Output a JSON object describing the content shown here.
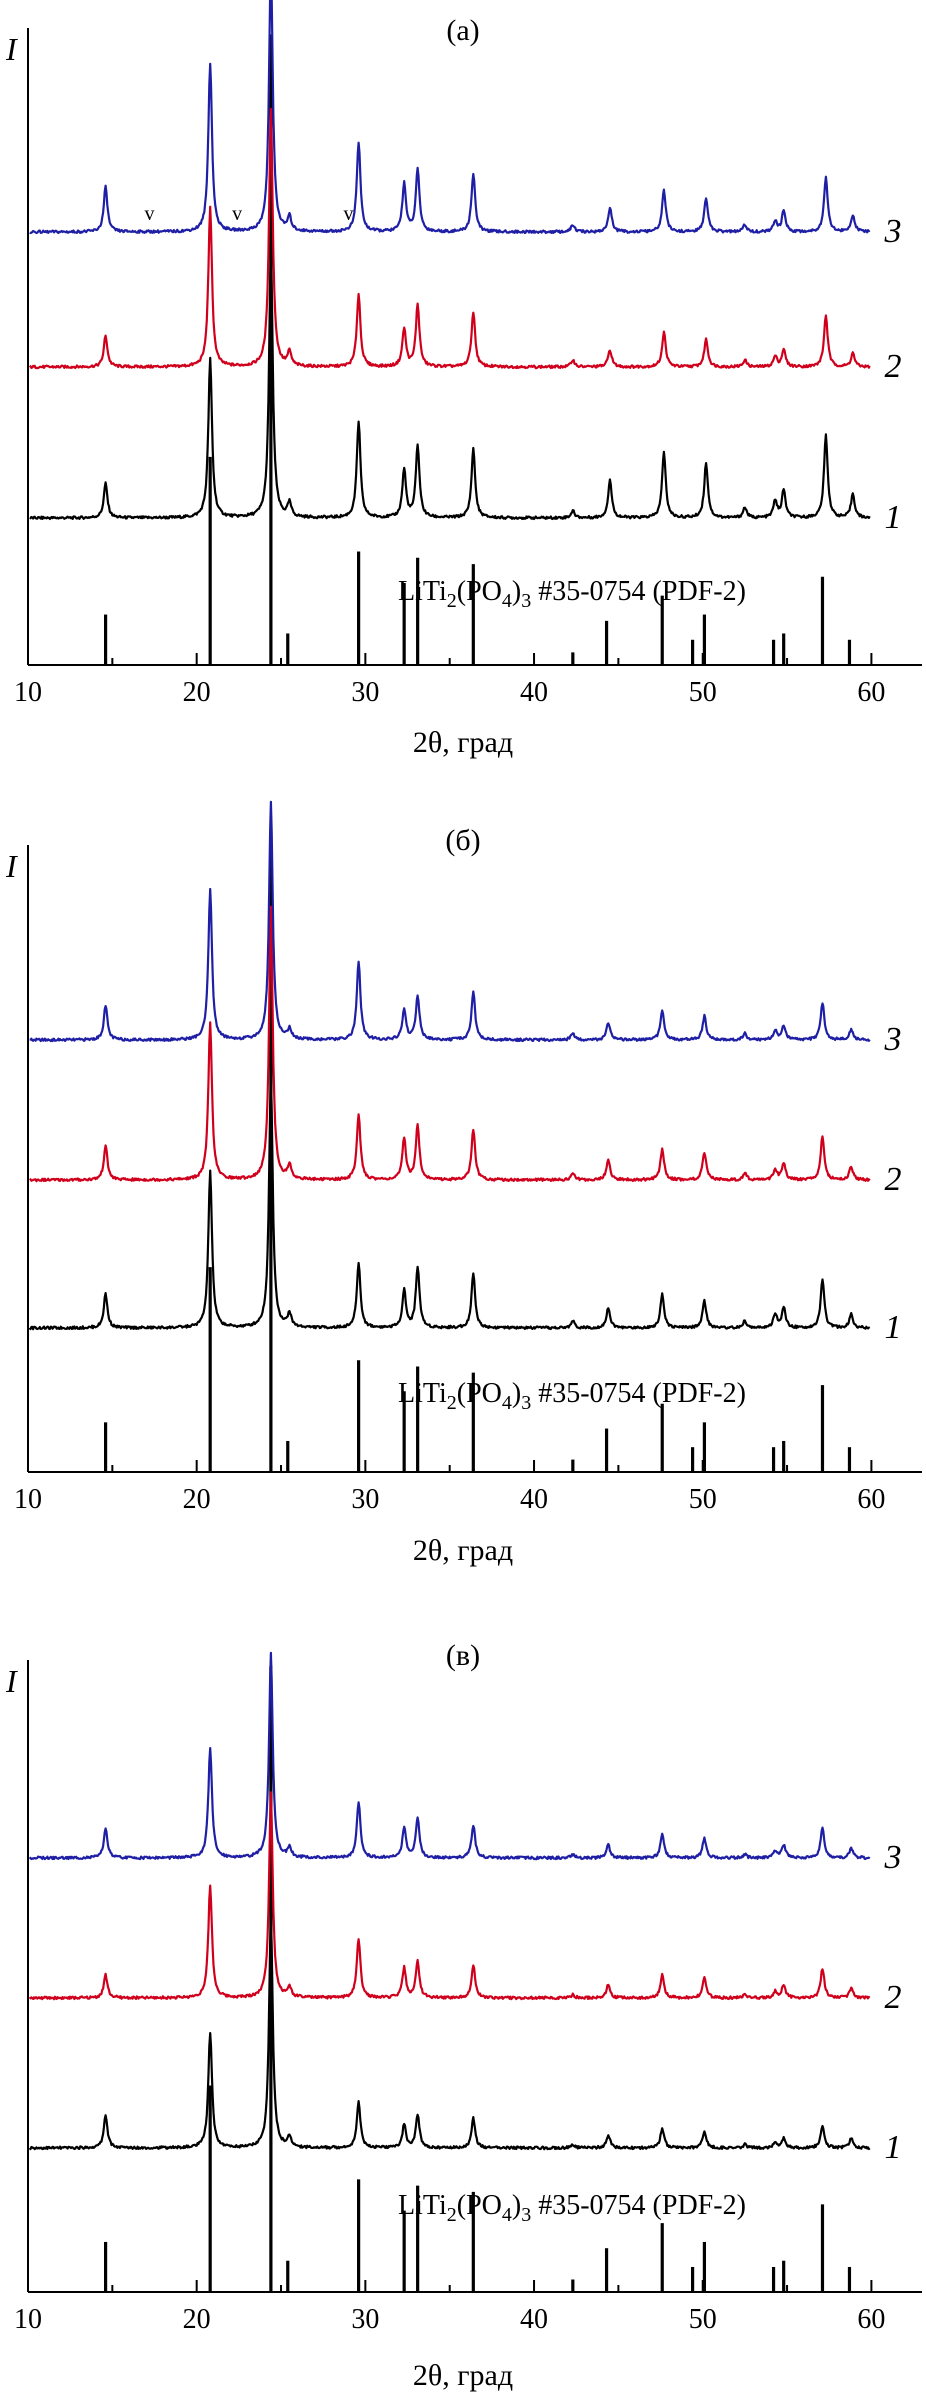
{
  "colors": {
    "curve1": "#000000",
    "curve2": "#d0001c",
    "curve3": "#1f1fa6",
    "axes": "#000000"
  },
  "chart_data": [
    {
      "type": "line",
      "panel_label": "(а)",
      "ylabel": "I",
      "xlabel": "2θ, град",
      "xlim": [
        10,
        63
      ],
      "x_ticks": [
        10,
        20,
        30,
        40,
        50,
        60
      ],
      "reference": {
        "label_parts": [
          "LiTi",
          "2",
          "(PO",
          "4",
          ")",
          "3",
          " #35-0754 (PDF-2)"
        ],
        "peaks": [
          {
            "x": 14.6,
            "h": 0.08
          },
          {
            "x": 20.8,
            "h": 0.33
          },
          {
            "x": 24.4,
            "h": 1.0
          },
          {
            "x": 25.4,
            "h": 0.05
          },
          {
            "x": 29.6,
            "h": 0.18
          },
          {
            "x": 32.3,
            "h": 0.13
          },
          {
            "x": 33.1,
            "h": 0.17
          },
          {
            "x": 36.4,
            "h": 0.16
          },
          {
            "x": 42.3,
            "h": 0.02
          },
          {
            "x": 44.3,
            "h": 0.07
          },
          {
            "x": 47.6,
            "h": 0.11
          },
          {
            "x": 49.4,
            "h": 0.04
          },
          {
            "x": 50.1,
            "h": 0.08
          },
          {
            "x": 54.2,
            "h": 0.04
          },
          {
            "x": 54.8,
            "h": 0.05
          },
          {
            "x": 57.1,
            "h": 0.14
          },
          {
            "x": 58.7,
            "h": 0.04
          }
        ]
      },
      "series": [
        {
          "label": "1",
          "peaks": [
            {
              "x": 14.6,
              "h": 0.1
            },
            {
              "x": 20.8,
              "h": 0.46
            },
            {
              "x": 24.4,
              "h": 0.78
            },
            {
              "x": 25.5,
              "h": 0.04
            },
            {
              "x": 29.6,
              "h": 0.28
            },
            {
              "x": 32.3,
              "h": 0.14
            },
            {
              "x": 33.1,
              "h": 0.21
            },
            {
              "x": 36.4,
              "h": 0.2
            },
            {
              "x": 42.3,
              "h": 0.02
            },
            {
              "x": 44.5,
              "h": 0.11
            },
            {
              "x": 47.7,
              "h": 0.19
            },
            {
              "x": 50.2,
              "h": 0.16
            },
            {
              "x": 52.5,
              "h": 0.03
            },
            {
              "x": 54.3,
              "h": 0.05
            },
            {
              "x": 54.8,
              "h": 0.08
            },
            {
              "x": 57.3,
              "h": 0.24
            },
            {
              "x": 58.9,
              "h": 0.07
            }
          ]
        },
        {
          "label": "2",
          "peaks": [
            {
              "x": 14.6,
              "h": 0.09
            },
            {
              "x": 20.8,
              "h": 0.46
            },
            {
              "x": 24.4,
              "h": 0.75
            },
            {
              "x": 25.5,
              "h": 0.04
            },
            {
              "x": 29.6,
              "h": 0.21
            },
            {
              "x": 32.3,
              "h": 0.11
            },
            {
              "x": 33.1,
              "h": 0.18
            },
            {
              "x": 36.4,
              "h": 0.16
            },
            {
              "x": 42.3,
              "h": 0.02
            },
            {
              "x": 44.5,
              "h": 0.05
            },
            {
              "x": 47.7,
              "h": 0.1
            },
            {
              "x": 50.2,
              "h": 0.08
            },
            {
              "x": 52.5,
              "h": 0.02
            },
            {
              "x": 54.3,
              "h": 0.03
            },
            {
              "x": 54.8,
              "h": 0.05
            },
            {
              "x": 57.3,
              "h": 0.15
            },
            {
              "x": 58.9,
              "h": 0.04
            }
          ]
        },
        {
          "label": "3",
          "peaks": [
            {
              "x": 14.6,
              "h": 0.13
            },
            {
              "x": 20.8,
              "h": 0.49
            },
            {
              "x": 24.4,
              "h": 0.78
            },
            {
              "x": 25.5,
              "h": 0.04
            },
            {
              "x": 29.6,
              "h": 0.26
            },
            {
              "x": 32.3,
              "h": 0.14
            },
            {
              "x": 33.1,
              "h": 0.18
            },
            {
              "x": 36.4,
              "h": 0.17
            },
            {
              "x": 42.3,
              "h": 0.02
            },
            {
              "x": 44.5,
              "h": 0.07
            },
            {
              "x": 47.7,
              "h": 0.12
            },
            {
              "x": 50.2,
              "h": 0.1
            },
            {
              "x": 52.5,
              "h": 0.02
            },
            {
              "x": 54.3,
              "h": 0.03
            },
            {
              "x": 54.8,
              "h": 0.06
            },
            {
              "x": 57.3,
              "h": 0.16
            },
            {
              "x": 58.9,
              "h": 0.05
            }
          ]
        }
      ],
      "markers": [
        {
          "text": "v",
          "x": 17.2
        },
        {
          "text": "v",
          "x": 22.4
        },
        {
          "text": "v",
          "x": 29.0
        }
      ]
    },
    {
      "type": "line",
      "panel_label": "(б)",
      "ylabel": "I",
      "xlabel": "2θ, град",
      "xlim": [
        10,
        63
      ],
      "x_ticks": [
        10,
        20,
        30,
        40,
        50,
        60
      ],
      "reference": {
        "label_parts": [
          "LiTi",
          "2",
          "(PO",
          "4",
          ")",
          "3",
          " #35-0754 (PDF-2)"
        ],
        "peaks": [
          {
            "x": 14.6,
            "h": 0.08
          },
          {
            "x": 20.8,
            "h": 0.33
          },
          {
            "x": 24.4,
            "h": 1.0
          },
          {
            "x": 25.4,
            "h": 0.05
          },
          {
            "x": 29.6,
            "h": 0.18
          },
          {
            "x": 32.3,
            "h": 0.13
          },
          {
            "x": 33.1,
            "h": 0.17
          },
          {
            "x": 36.4,
            "h": 0.16
          },
          {
            "x": 42.3,
            "h": 0.02
          },
          {
            "x": 44.3,
            "h": 0.07
          },
          {
            "x": 47.6,
            "h": 0.11
          },
          {
            "x": 49.4,
            "h": 0.04
          },
          {
            "x": 50.1,
            "h": 0.08
          },
          {
            "x": 54.2,
            "h": 0.04
          },
          {
            "x": 54.8,
            "h": 0.05
          },
          {
            "x": 57.1,
            "h": 0.14
          },
          {
            "x": 58.7,
            "h": 0.04
          }
        ]
      },
      "series": [
        {
          "label": "1",
          "peaks": [
            {
              "x": 14.6,
              "h": 0.1
            },
            {
              "x": 20.8,
              "h": 0.46
            },
            {
              "x": 24.4,
              "h": 0.74
            },
            {
              "x": 25.5,
              "h": 0.04
            },
            {
              "x": 29.6,
              "h": 0.19
            },
            {
              "x": 32.3,
              "h": 0.11
            },
            {
              "x": 33.1,
              "h": 0.18
            },
            {
              "x": 36.4,
              "h": 0.16
            },
            {
              "x": 42.3,
              "h": 0.02
            },
            {
              "x": 44.4,
              "h": 0.06
            },
            {
              "x": 47.6,
              "h": 0.1
            },
            {
              "x": 50.1,
              "h": 0.08
            },
            {
              "x": 52.5,
              "h": 0.02
            },
            {
              "x": 54.3,
              "h": 0.04
            },
            {
              "x": 54.8,
              "h": 0.06
            },
            {
              "x": 57.1,
              "h": 0.14
            },
            {
              "x": 58.8,
              "h": 0.04
            }
          ]
        },
        {
          "label": "2",
          "peaks": [
            {
              "x": 14.6,
              "h": 0.1
            },
            {
              "x": 20.8,
              "h": 0.46
            },
            {
              "x": 24.4,
              "h": 0.8
            },
            {
              "x": 25.5,
              "h": 0.04
            },
            {
              "x": 29.6,
              "h": 0.19
            },
            {
              "x": 32.3,
              "h": 0.12
            },
            {
              "x": 33.1,
              "h": 0.16
            },
            {
              "x": 36.4,
              "h": 0.15
            },
            {
              "x": 42.3,
              "h": 0.02
            },
            {
              "x": 44.4,
              "h": 0.06
            },
            {
              "x": 47.6,
              "h": 0.09
            },
            {
              "x": 50.1,
              "h": 0.08
            },
            {
              "x": 52.5,
              "h": 0.02
            },
            {
              "x": 54.3,
              "h": 0.03
            },
            {
              "x": 54.8,
              "h": 0.05
            },
            {
              "x": 57.1,
              "h": 0.13
            },
            {
              "x": 58.8,
              "h": 0.04
            }
          ]
        },
        {
          "label": "3",
          "peaks": [
            {
              "x": 14.6,
              "h": 0.1
            },
            {
              "x": 20.8,
              "h": 0.44
            },
            {
              "x": 24.4,
              "h": 0.7
            },
            {
              "x": 25.5,
              "h": 0.03
            },
            {
              "x": 29.6,
              "h": 0.23
            },
            {
              "x": 32.3,
              "h": 0.09
            },
            {
              "x": 33.1,
              "h": 0.13
            },
            {
              "x": 36.4,
              "h": 0.14
            },
            {
              "x": 42.3,
              "h": 0.02
            },
            {
              "x": 44.4,
              "h": 0.05
            },
            {
              "x": 47.6,
              "h": 0.09
            },
            {
              "x": 50.1,
              "h": 0.07
            },
            {
              "x": 52.5,
              "h": 0.02
            },
            {
              "x": 54.3,
              "h": 0.03
            },
            {
              "x": 54.8,
              "h": 0.04
            },
            {
              "x": 57.1,
              "h": 0.11
            },
            {
              "x": 58.8,
              "h": 0.03
            }
          ]
        }
      ],
      "markers": []
    },
    {
      "type": "line",
      "panel_label": "(в)",
      "ylabel": "I",
      "xlabel": "2θ, град",
      "xlim": [
        10,
        63
      ],
      "x_ticks": [
        10,
        20,
        30,
        40,
        50,
        60
      ],
      "reference": {
        "label_parts": [
          "LiTi",
          "2",
          "(PO",
          "4",
          ")",
          "3",
          " #35-0754 (PDF-2)"
        ],
        "peaks": [
          {
            "x": 14.6,
            "h": 0.08
          },
          {
            "x": 20.8,
            "h": 0.33
          },
          {
            "x": 24.4,
            "h": 1.0
          },
          {
            "x": 25.4,
            "h": 0.05
          },
          {
            "x": 29.6,
            "h": 0.18
          },
          {
            "x": 32.3,
            "h": 0.13
          },
          {
            "x": 33.1,
            "h": 0.17
          },
          {
            "x": 36.4,
            "h": 0.16
          },
          {
            "x": 42.3,
            "h": 0.02
          },
          {
            "x": 44.3,
            "h": 0.07
          },
          {
            "x": 47.6,
            "h": 0.11
          },
          {
            "x": 49.4,
            "h": 0.04
          },
          {
            "x": 50.1,
            "h": 0.08
          },
          {
            "x": 54.2,
            "h": 0.04
          },
          {
            "x": 54.8,
            "h": 0.05
          },
          {
            "x": 57.1,
            "h": 0.14
          },
          {
            "x": 58.7,
            "h": 0.04
          }
        ]
      },
      "series": [
        {
          "label": "1",
          "peaks": [
            {
              "x": 14.6,
              "h": 0.1
            },
            {
              "x": 20.8,
              "h": 0.35
            },
            {
              "x": 24.4,
              "h": 0.7
            },
            {
              "x": 25.5,
              "h": 0.03
            },
            {
              "x": 29.6,
              "h": 0.14
            },
            {
              "x": 32.3,
              "h": 0.07
            },
            {
              "x": 33.1,
              "h": 0.1
            },
            {
              "x": 36.4,
              "h": 0.09
            },
            {
              "x": 42.3,
              "h": 0.01
            },
            {
              "x": 44.4,
              "h": 0.04
            },
            {
              "x": 47.6,
              "h": 0.06
            },
            {
              "x": 50.1,
              "h": 0.05
            },
            {
              "x": 52.5,
              "h": 0.01
            },
            {
              "x": 54.3,
              "h": 0.02
            },
            {
              "x": 54.8,
              "h": 0.03
            },
            {
              "x": 57.1,
              "h": 0.07
            },
            {
              "x": 58.8,
              "h": 0.03
            }
          ]
        },
        {
          "label": "2",
          "peaks": [
            {
              "x": 14.6,
              "h": 0.07
            },
            {
              "x": 20.8,
              "h": 0.34
            },
            {
              "x": 24.4,
              "h": 0.62
            },
            {
              "x": 25.5,
              "h": 0.03
            },
            {
              "x": 29.6,
              "h": 0.18
            },
            {
              "x": 32.3,
              "h": 0.09
            },
            {
              "x": 33.1,
              "h": 0.11
            },
            {
              "x": 36.4,
              "h": 0.1
            },
            {
              "x": 42.3,
              "h": 0.01
            },
            {
              "x": 44.4,
              "h": 0.04
            },
            {
              "x": 47.6,
              "h": 0.07
            },
            {
              "x": 50.1,
              "h": 0.06
            },
            {
              "x": 52.5,
              "h": 0.01
            },
            {
              "x": 54.3,
              "h": 0.02
            },
            {
              "x": 54.8,
              "h": 0.04
            },
            {
              "x": 57.1,
              "h": 0.09
            },
            {
              "x": 58.8,
              "h": 0.03
            }
          ]
        },
        {
          "label": "3",
          "peaks": [
            {
              "x": 14.6,
              "h": 0.09
            },
            {
              "x": 20.8,
              "h": 0.33
            },
            {
              "x": 24.4,
              "h": 0.62
            },
            {
              "x": 25.5,
              "h": 0.03
            },
            {
              "x": 29.6,
              "h": 0.17
            },
            {
              "x": 32.3,
              "h": 0.09
            },
            {
              "x": 33.1,
              "h": 0.12
            },
            {
              "x": 36.4,
              "h": 0.1
            },
            {
              "x": 42.3,
              "h": 0.01
            },
            {
              "x": 44.4,
              "h": 0.04
            },
            {
              "x": 47.6,
              "h": 0.07
            },
            {
              "x": 50.1,
              "h": 0.06
            },
            {
              "x": 52.5,
              "h": 0.01
            },
            {
              "x": 54.3,
              "h": 0.02
            },
            {
              "x": 54.8,
              "h": 0.04
            },
            {
              "x": 57.1,
              "h": 0.09
            },
            {
              "x": 58.8,
              "h": 0.03
            }
          ]
        }
      ],
      "markers": []
    }
  ]
}
